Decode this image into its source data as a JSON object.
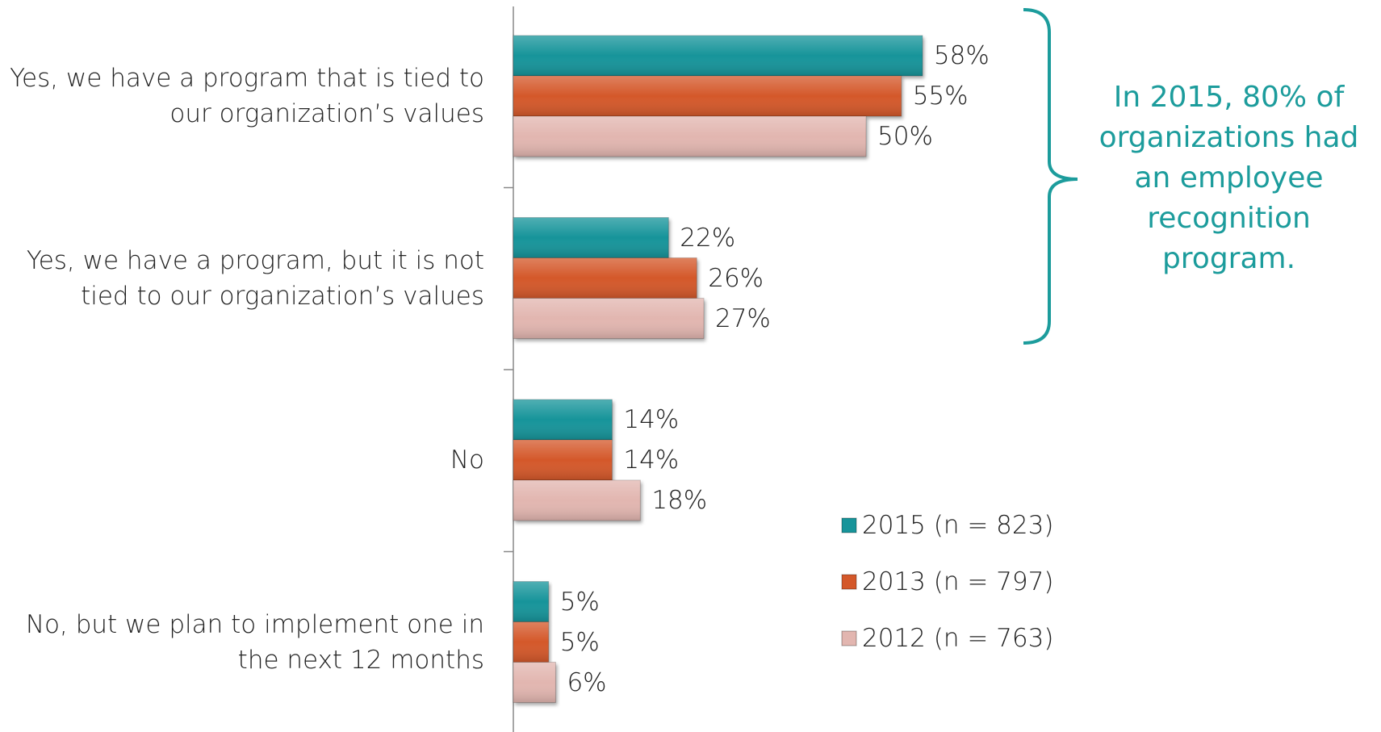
{
  "chart_data": {
    "type": "bar",
    "orientation": "horizontal",
    "categories": [
      "Yes, we have a program that is tied to our organization’s values",
      "Yes, we have a program, but it is not tied to our organization’s values",
      "No",
      "No, but we plan to implement one in the next 12 months"
    ],
    "series": [
      {
        "name": "2015 (n = 823)",
        "color": "#17949a",
        "values": [
          58,
          22,
          14,
          5
        ],
        "value_labels": [
          "58%",
          "22%",
          "14%",
          "5%"
        ]
      },
      {
        "name": "2013 (n = 797)",
        "color": "#d4582a",
        "values": [
          55,
          26,
          14,
          5
        ],
        "value_labels": [
          "55%",
          "26%",
          "14%",
          "5%"
        ]
      },
      {
        "name": "2012 (n = 763)",
        "color": "#e2b6b0",
        "values": [
          50,
          27,
          18,
          6
        ],
        "value_labels": [
          "50%",
          "27%",
          "18%",
          "6%"
        ]
      }
    ],
    "annotation": "In 2015, 80% of organizations had an employee recognition program.",
    "annotation_color": "#1c9c9c",
    "legend": "lower right"
  }
}
